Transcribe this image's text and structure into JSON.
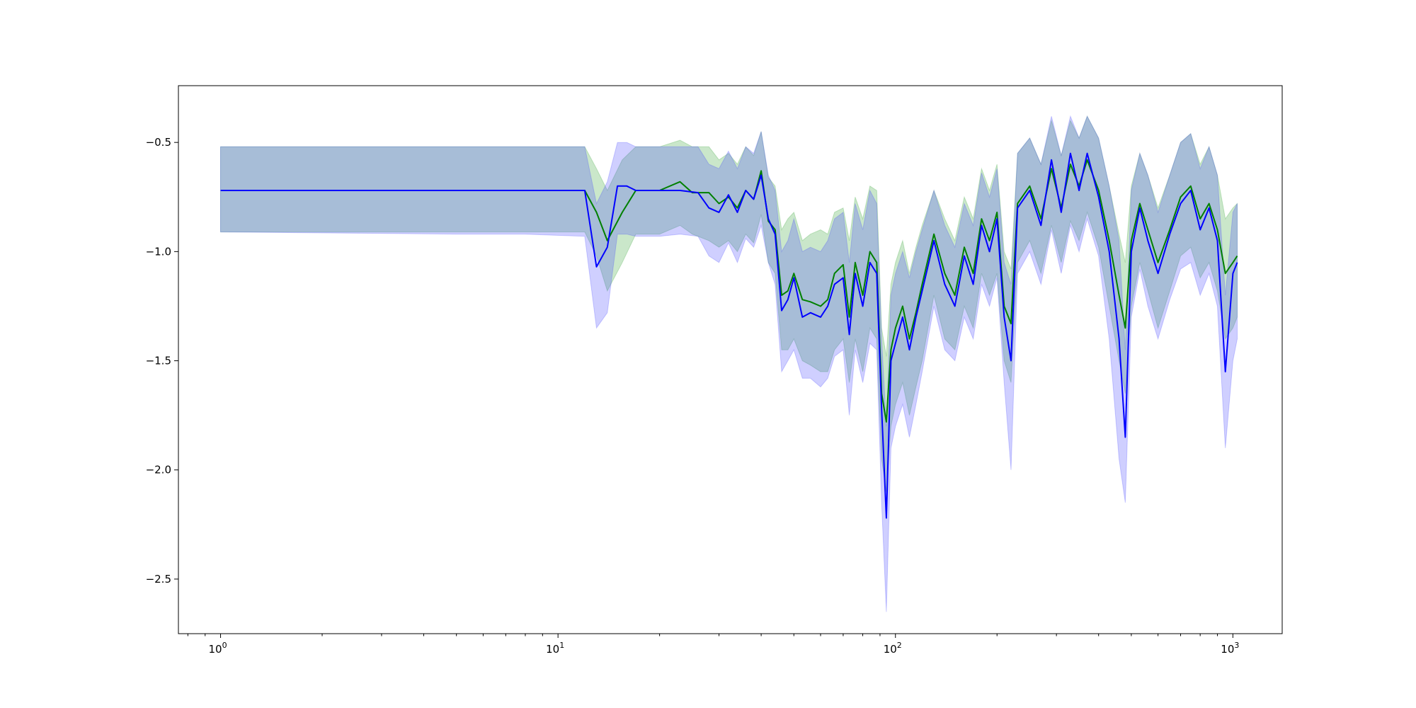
{
  "chart_data": {
    "type": "line",
    "title": "",
    "xlabel": "",
    "ylabel": "",
    "xscale": "log",
    "xlim": [
      0.75,
      1400
    ],
    "ylim": [
      -2.75,
      -0.24
    ],
    "grid": false,
    "legend": "none",
    "xticks": [
      {
        "value": 1,
        "label": "10",
        "exp": "0"
      },
      {
        "value": 10,
        "label": "10",
        "exp": "1"
      },
      {
        "value": 100,
        "label": "10",
        "exp": "2"
      },
      {
        "value": 1000,
        "label": "10",
        "exp": "3"
      }
    ],
    "yticks": [
      {
        "value": -0.5,
        "label": "−0.5"
      },
      {
        "value": -1.0,
        "label": "−1.0"
      },
      {
        "value": -1.5,
        "label": "−1.5"
      },
      {
        "value": -2.0,
        "label": "−2.0"
      },
      {
        "value": -2.5,
        "label": "−2.5"
      }
    ],
    "series": [
      {
        "color": "#008000",
        "band_color": "#2ca02c",
        "band_opacity": 0.25,
        "points": [
          [
            1,
            -0.72,
            -0.91,
            -0.52
          ],
          [
            5,
            -0.72,
            -0.91,
            -0.52
          ],
          [
            8,
            -0.72,
            -0.91,
            -0.52
          ],
          [
            12,
            -0.72,
            -0.91,
            -0.52
          ],
          [
            13,
            -0.82,
            -1.02,
            -0.62
          ],
          [
            14,
            -0.95,
            -1.18,
            -0.72
          ],
          [
            15.5,
            -0.82,
            -1.05,
            -0.58
          ],
          [
            17,
            -0.72,
            -0.92,
            -0.52
          ],
          [
            20,
            -0.72,
            -0.92,
            -0.52
          ],
          [
            23,
            -0.68,
            -0.88,
            -0.49
          ],
          [
            25,
            -0.73,
            -0.92,
            -0.52
          ],
          [
            28,
            -0.73,
            -0.95,
            -0.52
          ],
          [
            30,
            -0.78,
            -0.98,
            -0.58
          ],
          [
            32,
            -0.75,
            -0.95,
            -0.55
          ],
          [
            34,
            -0.8,
            -1.0,
            -0.6
          ],
          [
            36,
            -0.72,
            -0.92,
            -0.52
          ],
          [
            38,
            -0.76,
            -0.96,
            -0.56
          ],
          [
            40,
            -0.63,
            -0.83,
            -0.45
          ],
          [
            42,
            -0.86,
            -1.05,
            -0.66
          ],
          [
            44,
            -0.9,
            -1.1,
            -0.7
          ],
          [
            46,
            -1.2,
            -1.45,
            -0.9
          ],
          [
            48,
            -1.18,
            -1.45,
            -0.85
          ],
          [
            50,
            -1.1,
            -1.4,
            -0.82
          ],
          [
            53,
            -1.22,
            -1.5,
            -0.95
          ],
          [
            56,
            -1.23,
            -1.52,
            -0.92
          ],
          [
            60,
            -1.25,
            -1.55,
            -0.9
          ],
          [
            63,
            -1.22,
            -1.55,
            -0.92
          ],
          [
            66,
            -1.1,
            -1.45,
            -0.82
          ],
          [
            70,
            -1.06,
            -1.4,
            -0.8
          ],
          [
            73,
            -1.3,
            -1.6,
            -0.95
          ],
          [
            76,
            -1.05,
            -1.4,
            -0.75
          ],
          [
            80,
            -1.2,
            -1.55,
            -0.85
          ],
          [
            84,
            -1.0,
            -1.35,
            -0.7
          ],
          [
            88,
            -1.05,
            -1.4,
            -0.72
          ],
          [
            91,
            -1.65,
            -1.95,
            -1.35
          ],
          [
            94,
            -1.78,
            -2.1,
            -1.48
          ],
          [
            97,
            -1.45,
            -1.8,
            -1.15
          ],
          [
            100,
            -1.35,
            -1.7,
            -1.05
          ],
          [
            105,
            -1.25,
            -1.6,
            -0.95
          ],
          [
            110,
            -1.4,
            -1.75,
            -1.1
          ],
          [
            115,
            -1.28,
            -1.62,
            -0.98
          ],
          [
            120,
            -1.15,
            -1.5,
            -0.88
          ],
          [
            130,
            -0.92,
            -1.2,
            -0.72
          ],
          [
            140,
            -1.1,
            -1.4,
            -0.85
          ],
          [
            150,
            -1.2,
            -1.45,
            -0.95
          ],
          [
            160,
            -0.98,
            -1.25,
            -0.75
          ],
          [
            170,
            -1.1,
            -1.35,
            -0.85
          ],
          [
            180,
            -0.85,
            -1.1,
            -0.62
          ],
          [
            190,
            -0.95,
            -1.2,
            -0.72
          ],
          [
            200,
            -0.82,
            -1.1,
            -0.6
          ],
          [
            210,
            -1.25,
            -1.5,
            -1.0
          ],
          [
            220,
            -1.33,
            -1.6,
            -1.08
          ],
          [
            230,
            -0.78,
            -1.05,
            -0.55
          ],
          [
            250,
            -0.7,
            -0.95,
            -0.48
          ],
          [
            270,
            -0.85,
            -1.1,
            -0.6
          ],
          [
            290,
            -0.62,
            -0.88,
            -0.4
          ],
          [
            310,
            -0.8,
            -1.05,
            -0.56
          ],
          [
            330,
            -0.6,
            -0.86,
            -0.4
          ],
          [
            350,
            -0.7,
            -0.95,
            -0.48
          ],
          [
            370,
            -0.58,
            -0.82,
            -0.38
          ],
          [
            400,
            -0.72,
            -0.98,
            -0.48
          ],
          [
            430,
            -0.95,
            -1.25,
            -0.7
          ],
          [
            460,
            -1.2,
            -1.5,
            -0.92
          ],
          [
            480,
            -1.35,
            -1.65,
            -1.05
          ],
          [
            500,
            -0.95,
            -1.25,
            -0.7
          ],
          [
            530,
            -0.78,
            -1.05,
            -0.55
          ],
          [
            560,
            -0.9,
            -1.18,
            -0.65
          ],
          [
            600,
            -1.05,
            -1.35,
            -0.8
          ],
          [
            650,
            -0.9,
            -1.18,
            -0.65
          ],
          [
            700,
            -0.75,
            -1.02,
            -0.5
          ],
          [
            750,
            -0.7,
            -0.98,
            -0.46
          ],
          [
            800,
            -0.85,
            -1.12,
            -0.6
          ],
          [
            850,
            -0.78,
            -1.05,
            -0.52
          ],
          [
            900,
            -0.9,
            -1.18,
            -0.65
          ],
          [
            950,
            -1.1,
            -1.4,
            -0.85
          ],
          [
            1000,
            -1.05,
            -1.35,
            -0.8
          ],
          [
            1030,
            -1.02,
            -1.3,
            -0.78
          ]
        ]
      },
      {
        "color": "#0000ff",
        "band_color": "#4040ff",
        "band_opacity": 0.25,
        "points": [
          [
            1,
            -0.72,
            -0.91,
            -0.52
          ],
          [
            5,
            -0.72,
            -0.92,
            -0.52
          ],
          [
            8,
            -0.72,
            -0.92,
            -0.52
          ],
          [
            12,
            -0.72,
            -0.93,
            -0.52
          ],
          [
            13,
            -1.07,
            -1.35,
            -0.78
          ],
          [
            14,
            -0.98,
            -1.28,
            -0.68
          ],
          [
            15,
            -0.7,
            -0.92,
            -0.5
          ],
          [
            16,
            -0.7,
            -0.92,
            -0.5
          ],
          [
            17,
            -0.72,
            -0.93,
            -0.52
          ],
          [
            20,
            -0.72,
            -0.93,
            -0.52
          ],
          [
            23,
            -0.72,
            -0.92,
            -0.52
          ],
          [
            26,
            -0.73,
            -0.93,
            -0.52
          ],
          [
            28,
            -0.8,
            -1.02,
            -0.6
          ],
          [
            30,
            -0.82,
            -1.05,
            -0.62
          ],
          [
            32,
            -0.74,
            -0.96,
            -0.54
          ],
          [
            34,
            -0.82,
            -1.05,
            -0.62
          ],
          [
            36,
            -0.72,
            -0.94,
            -0.52
          ],
          [
            38,
            -0.76,
            -0.98,
            -0.55
          ],
          [
            40,
            -0.65,
            -0.88,
            -0.45
          ],
          [
            42,
            -0.85,
            -1.05,
            -0.65
          ],
          [
            44,
            -0.92,
            -1.15,
            -0.72
          ],
          [
            46,
            -1.27,
            -1.55,
            -1.0
          ],
          [
            48,
            -1.22,
            -1.5,
            -0.95
          ],
          [
            50,
            -1.12,
            -1.45,
            -0.85
          ],
          [
            53,
            -1.3,
            -1.58,
            -1.0
          ],
          [
            56,
            -1.28,
            -1.58,
            -0.98
          ],
          [
            60,
            -1.3,
            -1.62,
            -1.0
          ],
          [
            63,
            -1.25,
            -1.58,
            -0.95
          ],
          [
            66,
            -1.15,
            -1.48,
            -0.85
          ],
          [
            70,
            -1.12,
            -1.45,
            -0.82
          ],
          [
            73,
            -1.38,
            -1.75,
            -1.05
          ],
          [
            76,
            -1.1,
            -1.45,
            -0.78
          ],
          [
            80,
            -1.25,
            -1.6,
            -0.9
          ],
          [
            84,
            -1.05,
            -1.42,
            -0.72
          ],
          [
            88,
            -1.1,
            -1.45,
            -0.78
          ],
          [
            91,
            -1.72,
            -2.15,
            -1.4
          ],
          [
            94,
            -2.22,
            -2.65,
            -1.8
          ],
          [
            97,
            -1.5,
            -1.9,
            -1.2
          ],
          [
            100,
            -1.42,
            -1.8,
            -1.1
          ],
          [
            105,
            -1.3,
            -1.7,
            -1.0
          ],
          [
            110,
            -1.45,
            -1.85,
            -1.12
          ],
          [
            115,
            -1.3,
            -1.7,
            -1.0
          ],
          [
            120,
            -1.18,
            -1.55,
            -0.9
          ],
          [
            130,
            -0.95,
            -1.25,
            -0.72
          ],
          [
            140,
            -1.15,
            -1.45,
            -0.88
          ],
          [
            150,
            -1.25,
            -1.5,
            -0.98
          ],
          [
            160,
            -1.02,
            -1.3,
            -0.78
          ],
          [
            170,
            -1.15,
            -1.4,
            -0.88
          ],
          [
            180,
            -0.88,
            -1.15,
            -0.64
          ],
          [
            190,
            -1.0,
            -1.25,
            -0.75
          ],
          [
            200,
            -0.85,
            -1.12,
            -0.62
          ],
          [
            210,
            -1.3,
            -1.6,
            -1.05
          ],
          [
            220,
            -1.5,
            -2.0,
            -1.15
          ],
          [
            230,
            -0.8,
            -1.1,
            -0.55
          ],
          [
            250,
            -0.72,
            -1.0,
            -0.48
          ],
          [
            270,
            -0.88,
            -1.15,
            -0.6
          ],
          [
            290,
            -0.58,
            -0.9,
            -0.38
          ],
          [
            310,
            -0.82,
            -1.1,
            -0.56
          ],
          [
            330,
            -0.55,
            -0.88,
            -0.38
          ],
          [
            350,
            -0.72,
            -1.0,
            -0.48
          ],
          [
            370,
            -0.55,
            -0.85,
            -0.38
          ],
          [
            400,
            -0.75,
            -1.02,
            -0.48
          ],
          [
            430,
            -1.0,
            -1.4,
            -0.7
          ],
          [
            460,
            -1.4,
            -1.95,
            -0.95
          ],
          [
            480,
            -1.85,
            -2.15,
            -1.45
          ],
          [
            500,
            -1.0,
            -1.3,
            -0.72
          ],
          [
            530,
            -0.8,
            -1.08,
            -0.55
          ],
          [
            560,
            -0.95,
            -1.25,
            -0.65
          ],
          [
            600,
            -1.1,
            -1.4,
            -0.82
          ],
          [
            650,
            -0.92,
            -1.22,
            -0.65
          ],
          [
            700,
            -0.78,
            -1.08,
            -0.5
          ],
          [
            750,
            -0.72,
            -1.05,
            -0.46
          ],
          [
            800,
            -0.9,
            -1.2,
            -0.62
          ],
          [
            850,
            -0.8,
            -1.1,
            -0.52
          ],
          [
            900,
            -0.95,
            -1.25,
            -0.65
          ],
          [
            950,
            -1.55,
            -1.9,
            -1.2
          ],
          [
            1000,
            -1.1,
            -1.5,
            -0.82
          ],
          [
            1030,
            -1.05,
            -1.4,
            -0.78
          ]
        ]
      }
    ]
  }
}
